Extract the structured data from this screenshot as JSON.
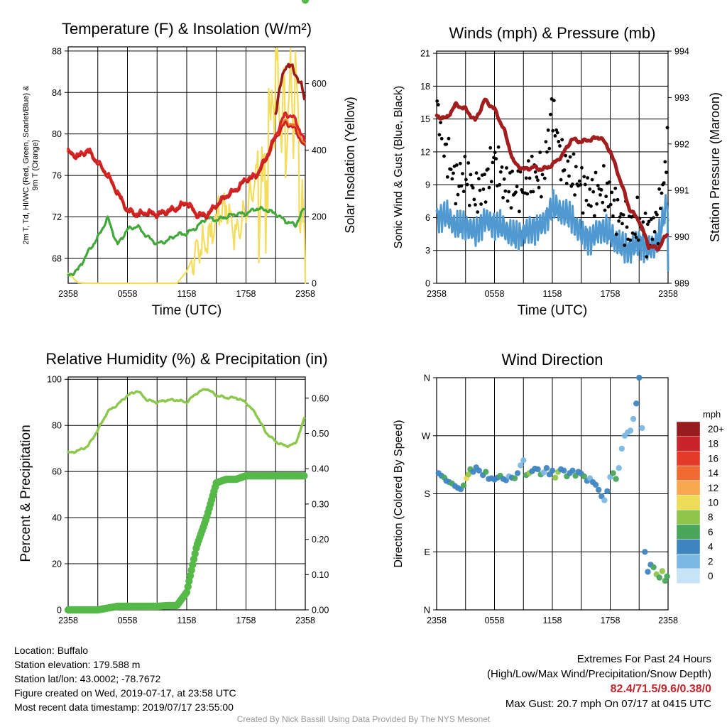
{
  "colors": {
    "temperature": "#c82020",
    "heat_index": "#d8262a",
    "temp_9m": "#f07d2e",
    "dewpoint": "#43a83b",
    "solar": "#f4dd5c",
    "max_temp": "#9a1a1a",
    "wind_speed": "#4f98d0",
    "gust": "#000000",
    "pressure": "#a21d1d",
    "rh": "#8cc84b",
    "precip": "#55b948",
    "extremes_text": "#c1272d",
    "credit_text": "#999999"
  },
  "chart_data": [
    {
      "id": "temp",
      "type": "line",
      "title": "Temperature (F) & Insolation (W/m²)",
      "xlabel": "Time (UTC)",
      "ylabel": "2m T, Td, HI/WC (Red, Green, Scarlet/Blue) & 9m T (Orange)",
      "y2label": "Solar Insolation (Yellow)",
      "x_ticks": [
        "2358",
        "0558",
        "1158",
        "1758",
        "2358"
      ],
      "ylim": [
        65.6,
        88.4
      ],
      "yticks": [
        68,
        72,
        76,
        80,
        84,
        88
      ],
      "y2lim": [
        0,
        710
      ],
      "y2ticks": [
        0,
        200,
        400,
        600
      ],
      "grid": true,
      "x_hours": [
        0,
        1,
        2,
        3,
        4,
        5,
        6,
        7,
        8,
        9,
        10,
        11,
        12,
        13,
        14,
        15,
        16,
        17,
        18,
        19,
        20,
        21,
        22,
        23,
        24
      ],
      "series": [
        {
          "key": "t9m",
          "values": [
            78.2,
            77.8,
            78.4,
            77.2,
            76.0,
            74.3,
            72.6,
            72.2,
            72.4,
            72.2,
            72.5,
            72.8,
            73.4,
            72.2,
            72.1,
            73.1,
            74.0,
            74.6,
            75.6,
            75.9,
            77.5,
            79.7,
            81.2,
            80.6,
            78.6
          ]
        },
        {
          "key": "hi",
          "values": [
            78.3,
            77.9,
            78.5,
            77.3,
            76.1,
            74.4,
            72.7,
            72.3,
            72.5,
            72.3,
            72.6,
            72.9,
            73.5,
            72.3,
            72.2,
            73.2,
            74.1,
            74.7,
            75.7,
            76.0,
            77.7,
            79.9,
            82.0,
            81.4,
            79.0
          ]
        },
        {
          "key": "t2m",
          "values": [
            78.1,
            77.7,
            78.3,
            77.1,
            75.9,
            74.2,
            72.5,
            72.1,
            72.3,
            72.1,
            72.4,
            72.7,
            73.3,
            72.1,
            72.0,
            73.0,
            73.9,
            74.5,
            75.5,
            75.8,
            77.4,
            79.6,
            81.1,
            80.4,
            78.5
          ]
        },
        {
          "key": "tmax",
          "values": [
            null,
            null,
            null,
            null,
            null,
            null,
            null,
            null,
            null,
            null,
            null,
            null,
            null,
            null,
            null,
            null,
            null,
            null,
            null,
            null,
            null,
            82.3,
            86.8,
            86.0,
            83.4
          ]
        },
        {
          "key": "td",
          "values": [
            66.3,
            66.9,
            68.6,
            70.0,
            71.9,
            69.3,
            70.8,
            71.1,
            70.1,
            69.4,
            69.7,
            70.3,
            70.4,
            71.0,
            71.9,
            71.7,
            72.0,
            72.3,
            72.3,
            72.8,
            72.7,
            72.3,
            71.6,
            71.2,
            73.0
          ]
        },
        {
          "key": "solar",
          "y_axis": "right",
          "values": [
            30,
            2,
            0,
            0,
            0,
            0,
            0,
            0,
            0,
            0,
            0,
            0,
            35,
            105,
            110,
            180,
            240,
            150,
            200,
            330,
            270,
            700,
            400,
            620,
            30
          ]
        }
      ]
    },
    {
      "id": "wind",
      "type": "line",
      "title": "Winds (mph) & Pressure (mb)",
      "xlabel": "Time (UTC)",
      "ylabel": "Sonic Wind & Gust (Blue, Black)",
      "y2label": "Station Pressure (Maroon)",
      "x_ticks": [
        "2358",
        "0558",
        "1158",
        "1758",
        "2358"
      ],
      "ylim": [
        0,
        21.2
      ],
      "yticks": [
        0,
        3,
        6,
        9,
        12,
        15,
        18,
        21
      ],
      "y2lim": [
        989,
        994
      ],
      "y2ticks": [
        989,
        990,
        991,
        992,
        993,
        994
      ],
      "grid": true,
      "x_hours": [
        0,
        1,
        2,
        3,
        4,
        5,
        6,
        7,
        8,
        9,
        10,
        11,
        12,
        13,
        14,
        15,
        16,
        17,
        18,
        19,
        20,
        21,
        22,
        23,
        24
      ],
      "series": [
        {
          "key": "speed",
          "values": [
            6.0,
            6.2,
            5.2,
            5.3,
            4.6,
            5.8,
            5.4,
            5.0,
            4.3,
            4.5,
            5.0,
            5.3,
            7.0,
            6.5,
            6.0,
            4.5,
            4.0,
            5.0,
            4.5,
            3.5,
            3.0,
            3.8,
            3.0,
            4.0,
            7.8
          ]
        },
        {
          "key": "gust",
          "values": [
            16.0,
            12.0,
            9.0,
            10.0,
            8.0,
            9.0,
            11.5,
            9.0,
            8.5,
            9.0,
            10.0,
            9.5,
            16.0,
            11.0,
            10.0,
            9.0,
            8.0,
            8.5,
            8.0,
            6.0,
            5.0,
            5.5,
            4.5,
            6.0,
            12.5
          ]
        },
        {
          "key": "pressure",
          "y_axis": "right",
          "values": [
            992.6,
            992.55,
            992.85,
            992.75,
            992.5,
            992.95,
            992.75,
            992.3,
            991.6,
            991.45,
            991.5,
            991.45,
            991.55,
            991.75,
            992.1,
            992.05,
            992.1,
            992.15,
            991.85,
            991.25,
            990.6,
            990.35,
            989.8,
            989.75,
            990.1
          ]
        }
      ]
    },
    {
      "id": "rh",
      "type": "line",
      "title": "Relative Humidity (%) & Precipitation (in)",
      "xlabel": "",
      "ylabel": "Percent & Precipitation",
      "x_ticks": [
        "2358",
        "0558",
        "1158",
        "1758",
        "2358"
      ],
      "ylim": [
        0,
        101
      ],
      "yticks": [
        0,
        20,
        40,
        60,
        80,
        100
      ],
      "y2lim": [
        0,
        0.66
      ],
      "y2ticks": [
        "0.00",
        "0.10",
        "0.20",
        "0.30",
        "0.40",
        "0.50",
        "0.60"
      ],
      "grid": true,
      "x_hours": [
        0,
        1,
        2,
        3,
        4,
        5,
        6,
        7,
        8,
        9,
        10,
        11,
        12,
        13,
        14,
        15,
        16,
        17,
        18,
        19,
        20,
        21,
        22,
        23,
        24
      ],
      "series": [
        {
          "key": "rh",
          "values": [
            68,
            69,
            71,
            78,
            86,
            89,
            93,
            95,
            91,
            90,
            91,
            91,
            90,
            94,
            96,
            93,
            92,
            92,
            90,
            85,
            77,
            73,
            71,
            72,
            84
          ]
        },
        {
          "key": "precip",
          "y_axis": "right",
          "values": [
            0.0,
            0.0,
            0.0,
            0.0,
            0.005,
            0.01,
            0.01,
            0.01,
            0.01,
            0.01,
            0.012,
            0.012,
            0.05,
            0.18,
            0.26,
            0.36,
            0.37,
            0.37,
            0.38,
            0.38,
            0.38,
            0.38,
            0.38,
            0.38,
            0.38
          ]
        }
      ]
    },
    {
      "id": "dir",
      "type": "scatter",
      "title": "Wind Direction",
      "xlabel": "",
      "ylabel": "Direction (Colored By Speed)",
      "x_ticks": [
        "2358",
        "0558",
        "1158",
        "1758",
        "2358"
      ],
      "ylim": [
        0,
        360
      ],
      "ytick_labels": [
        "N",
        "E",
        "S",
        "W",
        "N"
      ],
      "grid": true,
      "legend_title": "mph",
      "legend_labels": [
        "20+",
        "18",
        "16",
        "14",
        "12",
        "10",
        "8",
        "6",
        "4",
        "2",
        "0"
      ],
      "legend_colors": [
        "#981b1e",
        "#c9242b",
        "#e33a2a",
        "#f16a31",
        "#f8a950",
        "#ecdc57",
        "#8fc54b",
        "#49a65a",
        "#3e85c2",
        "#7bb8e3",
        "#c6e4f5"
      ],
      "points": [
        [
          0.2,
          212,
          3
        ],
        [
          0.5,
          208,
          4
        ],
        [
          0.8,
          205,
          5
        ],
        [
          1.0,
          200,
          4
        ],
        [
          1.3,
          198,
          3
        ],
        [
          1.6,
          196,
          5
        ],
        [
          1.9,
          192,
          4
        ],
        [
          2.2,
          189,
          4
        ],
        [
          2.5,
          187,
          3
        ],
        [
          2.8,
          193,
          5
        ],
        [
          3.1,
          204,
          9
        ],
        [
          3.3,
          210,
          7
        ],
        [
          3.5,
          218,
          5
        ],
        [
          3.8,
          214,
          4
        ],
        [
          4.1,
          221,
          3
        ],
        [
          4.4,
          216,
          4
        ],
        [
          4.8,
          209,
          4
        ],
        [
          5.1,
          214,
          5
        ],
        [
          5.4,
          203,
          4
        ],
        [
          5.7,
          204,
          3
        ],
        [
          6.0,
          202,
          4
        ],
        [
          6.3,
          205,
          4
        ],
        [
          6.6,
          208,
          5
        ],
        [
          6.9,
          203,
          3
        ],
        [
          7.2,
          201,
          4
        ],
        [
          7.5,
          207,
          2
        ],
        [
          7.8,
          205,
          4
        ],
        [
          8.1,
          204,
          5
        ],
        [
          8.4,
          212,
          3
        ],
        [
          8.7,
          224,
          2
        ],
        [
          9.0,
          232,
          2
        ],
        [
          9.3,
          209,
          6
        ],
        [
          9.6,
          212,
          8
        ],
        [
          9.9,
          215,
          4
        ],
        [
          10.2,
          219,
          3
        ],
        [
          10.5,
          218,
          4
        ],
        [
          10.8,
          210,
          5
        ],
        [
          11.1,
          213,
          2
        ],
        [
          11.4,
          220,
          3
        ],
        [
          11.7,
          210,
          4
        ],
        [
          12.0,
          216,
          4
        ],
        [
          12.3,
          205,
          7
        ],
        [
          12.6,
          214,
          8
        ],
        [
          12.9,
          218,
          3
        ],
        [
          13.2,
          216,
          4
        ],
        [
          13.5,
          207,
          6
        ],
        [
          13.8,
          212,
          3
        ],
        [
          14.1,
          216,
          4
        ],
        [
          14.4,
          208,
          5
        ],
        [
          14.7,
          214,
          3
        ],
        [
          15.0,
          211,
          4
        ],
        [
          15.3,
          207,
          5
        ],
        [
          15.6,
          200,
          4
        ],
        [
          15.9,
          204,
          2
        ],
        [
          16.2,
          198,
          3
        ],
        [
          16.5,
          194,
          4
        ],
        [
          16.8,
          186,
          4
        ],
        [
          17.1,
          176,
          3
        ],
        [
          17.4,
          170,
          2
        ],
        [
          17.7,
          184,
          4
        ],
        [
          18.0,
          206,
          2
        ],
        [
          18.3,
          212,
          5
        ],
        [
          18.6,
          203,
          6
        ],
        [
          18.9,
          220,
          2
        ],
        [
          19.2,
          250,
          2
        ],
        [
          19.5,
          270,
          2
        ],
        [
          19.8,
          275,
          1
        ],
        [
          20.1,
          278,
          2
        ],
        [
          20.4,
          296,
          2
        ],
        [
          20.7,
          320,
          3
        ],
        [
          21.0,
          360,
          4
        ],
        [
          21.3,
          282,
          1
        ],
        [
          21.6,
          90,
          3
        ],
        [
          21.9,
          59,
          4
        ],
        [
          22.2,
          70,
          3
        ],
        [
          22.5,
          66,
          5
        ],
        [
          22.8,
          55,
          7
        ],
        [
          23.1,
          50,
          6
        ],
        [
          23.4,
          60,
          7
        ],
        [
          23.7,
          45,
          6
        ],
        [
          23.9,
          52,
          5
        ]
      ]
    }
  ],
  "info": {
    "location": "Location: Buffalo",
    "elevation": "Station elevation: 179.588 m",
    "latlon": "Station lat/lon: 43.0002; -78.7672",
    "created": "Figure created on Wed, 2019-07-17, at 23:58 UTC",
    "recent": "Most recent data timestamp: 2019/07/17 23:55:00"
  },
  "extremes": {
    "title": "Extremes For Past 24 Hours",
    "subtitle": "(High/Low/Max Wind/Precipitation/Snow Depth)",
    "values": "82.4/71.5/9.6/0.38/0",
    "max_gust": "Max Gust: 20.7 mph On 07/17 at 0415 UTC"
  },
  "credit": "Created By Nick Bassill Using Data Provided By The NYS Mesonet"
}
